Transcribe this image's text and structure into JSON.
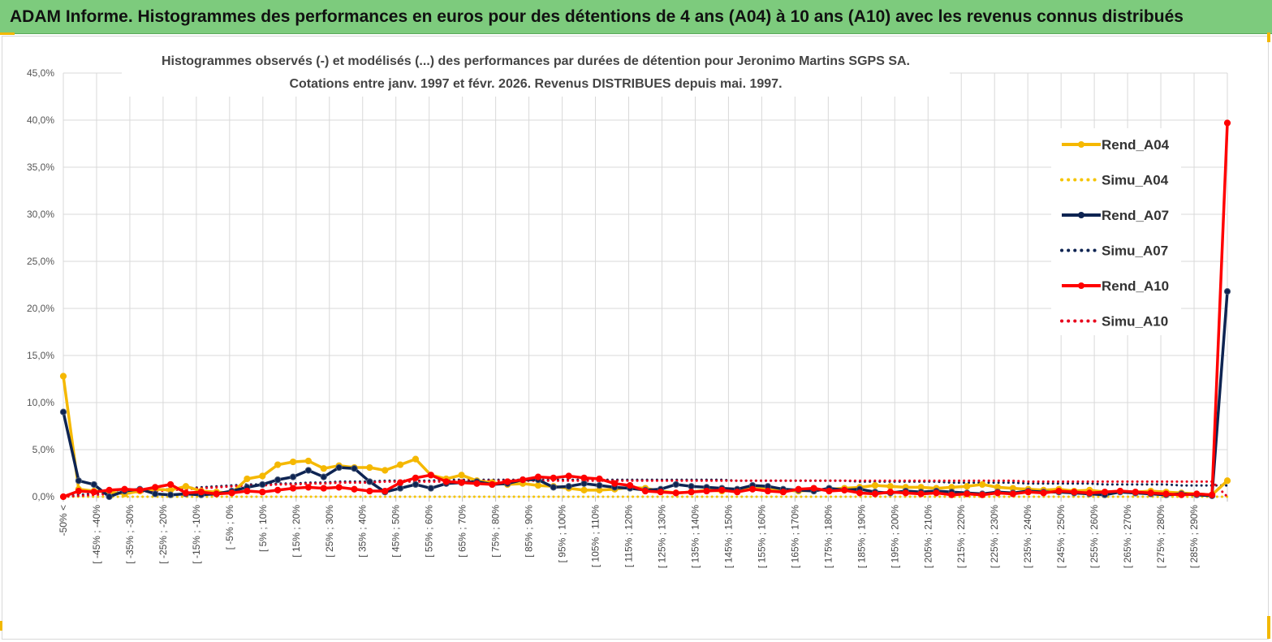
{
  "banner": {
    "title": "ADAM Informe. Histogrammes des performances en euros pour des détentions de 4 ans (A04) à 10 ans (A10) avec les revenus connus distribués"
  },
  "colors": {
    "banner_bg": "#7dcb7d",
    "accent_gold": "#f2b800",
    "rend_a04": "#f5b800",
    "simu_a04": "#f5c400",
    "rend_a07": "#0e2452",
    "simu_a07": "#0e2452",
    "rend_a10": "#ff0000",
    "simu_a10": "#e8001c",
    "grid": "#d9d9d9"
  },
  "chart_data": {
    "type": "line",
    "title": [
      "Histogrammes observés (-) et modélisés (...) des performances par durées de détention pour Jeronimo Martins SGPS SA.",
      "Cotations entre janv. 1997 et févr. 2026. Revenus DISTRIBUES depuis mai. 1997."
    ],
    "ylim": [
      0,
      45
    ],
    "yticks": [
      "0,0%",
      "5,0%",
      "10,0%",
      "15,0%",
      "20,0%",
      "25,0%",
      "30,0%",
      "35,0%",
      "40,0%",
      "45,0%"
    ],
    "xlabels": [
      "-50% <",
      "[ -45% ; -40%",
      "[ -35% ; -30%",
      "[ -25% ; -20%",
      "[ -15% ; -10%",
      "[ -5% ; 0%",
      "[ 5% ; 10%",
      "[ 15% ; 20%",
      "[ 25% ; 30%",
      "[ 35% ; 40%",
      "[ 45% ; 50%",
      "[ 55% ; 60%",
      "[ 65% ; 70%",
      "[ 75% ; 80%",
      "[ 85% ; 90%",
      "[ 95% ; 100%",
      "[ 105% ; 110%",
      "[ 115% ; 120%",
      "[ 125% ; 130%",
      "[ 135% ; 140%",
      "[ 145% ; 150%",
      "[ 155% ; 160%",
      "[ 165% ; 170%",
      "[ 175% ; 180%",
      "[ 185% ; 190%",
      "[ 195% ; 200%",
      "[ 205% ; 210%",
      "[ 215% ; 220%",
      "[ 225% ; 230%",
      "[ 235% ; 240%",
      "[ 245% ; 250%",
      "[ 255% ; 260%",
      "[ 265% ; 270%",
      "[ 275% ; 280%",
      "[ 285% ; 290%"
    ],
    "series": [
      {
        "name": "Rend_A04",
        "style": "solid",
        "markers": true,
        "color": "#f5b800",
        "values": [
          12.8,
          0.8,
          0.6,
          0.5,
          0.3,
          0.6,
          0.8,
          0.7,
          1.1,
          0.6,
          0.5,
          0.4,
          1.9,
          2.2,
          3.4,
          3.7,
          3.8,
          3.0,
          3.3,
          3.1,
          3.1,
          2.8,
          3.4,
          4.0,
          2.3,
          1.9,
          2.3,
          1.7,
          1.5,
          1.3,
          1.4,
          1.2,
          1.1,
          0.9,
          0.7,
          0.7,
          0.8,
          1.0,
          0.9,
          0.6,
          0.4,
          0.5,
          0.7,
          0.6,
          0.7,
          0.9,
          0.8,
          0.7,
          0.6,
          0.7,
          0.8,
          0.9,
          1.0,
          1.2,
          1.1,
          1.0,
          1.0,
          0.9,
          1.0,
          1.1,
          1.3,
          1.0,
          0.9,
          0.8,
          0.7,
          0.8,
          0.6,
          0.7,
          0.5,
          0.6,
          0.5,
          0.6,
          0.5,
          0.4,
          0.3,
          0.2,
          1.7
        ]
      },
      {
        "name": "Simu_A04",
        "style": "dotted",
        "markers": false,
        "color": "#f5c400",
        "values": [
          0.0,
          0.0,
          0.0,
          0.0,
          0.0,
          0.0,
          0.0,
          0.0,
          0.0,
          0.0,
          0.0,
          0.0,
          0.0,
          0.0,
          0.0,
          0.0,
          0.0,
          0.0,
          0.0,
          0.0,
          0.0,
          0.0,
          0.0,
          0.0,
          0.0,
          0.0,
          0.0,
          0.0,
          0.0,
          0.0,
          0.0,
          0.0,
          0.0,
          0.0,
          0.0,
          0.0,
          0.0,
          0.0,
          0.0,
          0.0,
          0.0,
          0.0,
          0.0,
          0.0,
          0.0,
          0.0,
          0.0,
          0.0,
          0.0,
          0.0,
          0.0,
          0.0,
          0.0,
          0.0,
          0.0,
          0.0,
          0.0,
          0.0,
          0.0,
          0.0,
          0.0,
          0.0,
          0.0,
          0.0,
          0.0,
          0.0,
          0.0,
          0.0,
          0.0,
          0.0,
          0.0,
          0.0,
          0.0,
          0.0,
          0.0,
          0.0,
          0.0
        ]
      },
      {
        "name": "Rend_A07",
        "style": "solid",
        "markers": true,
        "color": "#0e2452",
        "values": [
          9.0,
          1.7,
          1.3,
          0.0,
          0.6,
          0.8,
          0.3,
          0.2,
          0.3,
          0.2,
          0.3,
          0.6,
          1.0,
          1.3,
          1.8,
          2.1,
          2.8,
          2.1,
          3.1,
          3.0,
          1.6,
          0.5,
          0.9,
          1.3,
          0.9,
          1.4,
          1.5,
          1.6,
          1.3,
          1.4,
          1.8,
          1.8,
          1.0,
          1.1,
          1.4,
          1.2,
          1.0,
          0.9,
          0.7,
          0.8,
          1.3,
          1.1,
          1.0,
          0.9,
          0.8,
          1.2,
          1.1,
          0.8,
          0.7,
          0.6,
          0.9,
          0.7,
          0.8,
          0.5,
          0.4,
          0.6,
          0.5,
          0.6,
          0.5,
          0.4,
          0.3,
          0.5,
          0.4,
          0.6,
          0.5,
          0.5,
          0.4,
          0.3,
          0.2,
          0.5,
          0.4,
          0.3,
          0.2,
          0.3,
          0.2,
          0.1,
          21.8
        ]
      },
      {
        "name": "Simu_A07",
        "style": "dotted",
        "markers": false,
        "color": "#0e2452",
        "values": [
          0.0,
          0.2,
          0.3,
          0.4,
          0.5,
          0.6,
          0.7,
          0.8,
          0.9,
          1.0,
          1.1,
          1.2,
          1.3,
          1.3,
          1.4,
          1.4,
          1.5,
          1.5,
          1.6,
          1.6,
          1.6,
          1.7,
          1.7,
          1.7,
          1.7,
          1.8,
          1.8,
          1.8,
          1.8,
          1.8,
          1.8,
          1.8,
          1.8,
          1.8,
          1.8,
          1.8,
          1.8,
          1.8,
          1.8,
          1.8,
          1.8,
          1.8,
          1.8,
          1.8,
          1.7,
          1.7,
          1.7,
          1.7,
          1.7,
          1.7,
          1.7,
          1.7,
          1.6,
          1.6,
          1.6,
          1.6,
          1.6,
          1.6,
          1.5,
          1.5,
          1.5,
          1.5,
          1.5,
          1.4,
          1.4,
          1.4,
          1.4,
          1.4,
          1.3,
          1.3,
          1.3,
          1.3,
          1.3,
          1.2,
          1.2,
          1.2,
          1.2
        ]
      },
      {
        "name": "Rend_A10",
        "style": "solid",
        "markers": true,
        "color": "#ff0000",
        "values": [
          0.0,
          0.6,
          0.5,
          0.7,
          0.8,
          0.7,
          1.0,
          1.3,
          0.4,
          0.5,
          0.3,
          0.4,
          0.6,
          0.5,
          0.7,
          0.9,
          1.0,
          0.9,
          1.0,
          0.8,
          0.6,
          0.6,
          1.5,
          2.0,
          2.3,
          1.6,
          1.5,
          1.4,
          1.3,
          1.6,
          1.8,
          2.1,
          2.0,
          2.2,
          2.0,
          1.9,
          1.4,
          1.2,
          0.6,
          0.5,
          0.4,
          0.5,
          0.6,
          0.7,
          0.5,
          0.8,
          0.6,
          0.5,
          0.8,
          0.9,
          0.6,
          0.7,
          0.4,
          0.3,
          0.5,
          0.4,
          0.3,
          0.4,
          0.2,
          0.3,
          0.2,
          0.4,
          0.3,
          0.5,
          0.4,
          0.6,
          0.5,
          0.4,
          0.5,
          0.6,
          0.5,
          0.4,
          0.3,
          0.2,
          0.3,
          0.2,
          39.7
        ]
      },
      {
        "name": "Simu_A10",
        "style": "dotted",
        "markers": false,
        "color": "#e8001c",
        "values": [
          0.0,
          0.1,
          0.2,
          0.3,
          0.4,
          0.5,
          0.6,
          0.7,
          0.8,
          0.9,
          1.0,
          1.1,
          1.2,
          1.2,
          1.3,
          1.3,
          1.4,
          1.4,
          1.5,
          1.5,
          1.5,
          1.6,
          1.6,
          1.6,
          1.6,
          1.6,
          1.7,
          1.7,
          1.7,
          1.7,
          1.7,
          1.7,
          1.7,
          1.7,
          1.7,
          1.7,
          1.7,
          1.7,
          1.7,
          1.7,
          1.7,
          1.7,
          1.7,
          1.7,
          1.7,
          1.7,
          1.7,
          1.7,
          1.7,
          1.7,
          1.7,
          1.7,
          1.7,
          1.7,
          1.7,
          1.7,
          1.7,
          1.7,
          1.7,
          1.7,
          1.7,
          1.7,
          1.7,
          1.6,
          1.6,
          1.6,
          1.6,
          1.6,
          1.6,
          1.6,
          1.6,
          1.6,
          1.6,
          1.6,
          1.6,
          1.6,
          0.0
        ]
      }
    ],
    "legend": [
      "Rend_A04",
      "Simu_A04",
      "Rend_A07",
      "Simu_A07",
      "Rend_A10",
      "Simu_A10"
    ],
    "legend_position": "right",
    "grid": true
  }
}
